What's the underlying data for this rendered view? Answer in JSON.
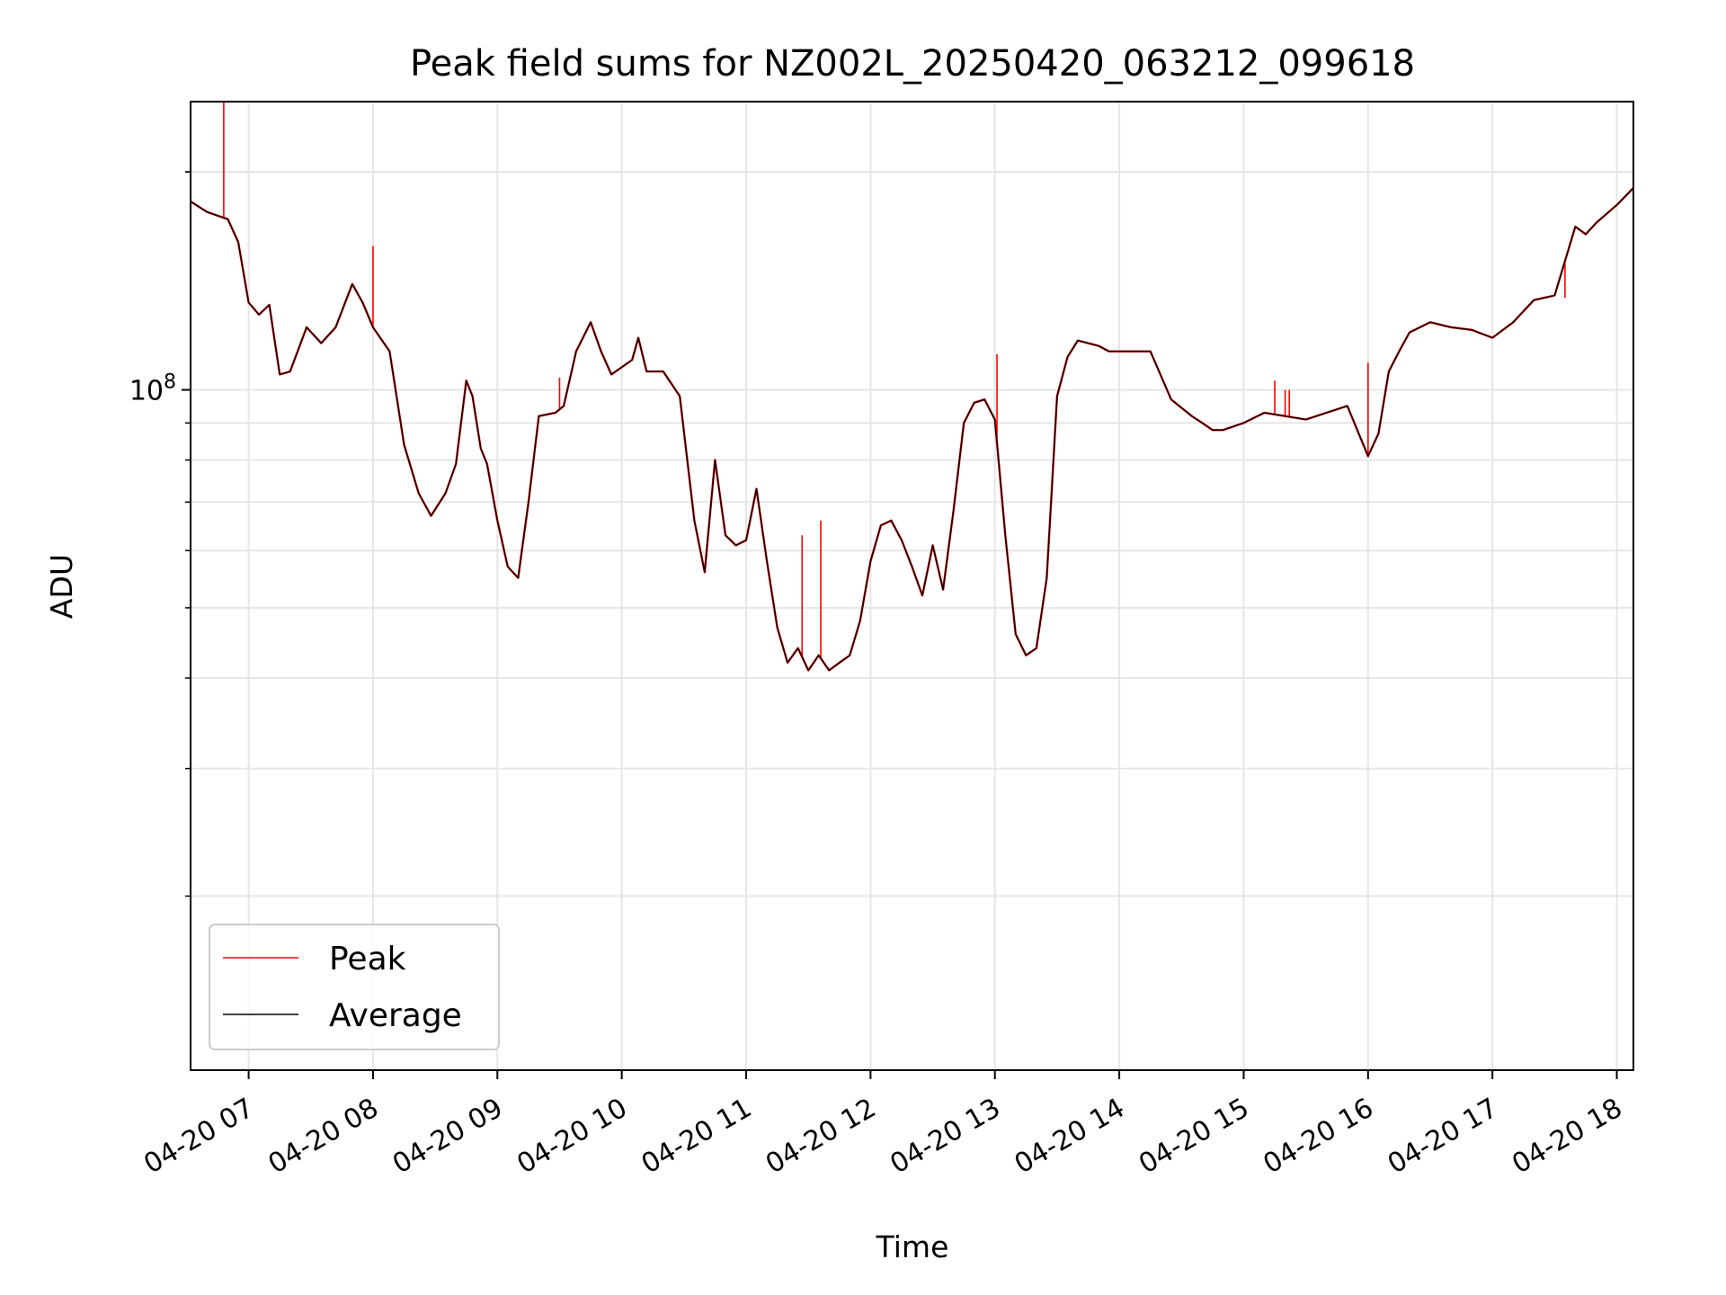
{
  "chart_data": {
    "type": "line",
    "title": "Peak field sums for NZ002L_20250420_063212_099618",
    "xlabel": "Time",
    "ylabel": "ADU",
    "y_scale": "log",
    "ylim": [
      11500000,
      250000000
    ],
    "xlim": [
      "2025-04-20 06:32",
      "2025-04-20 18:08"
    ],
    "x_ticks": [
      "04-20 07",
      "04-20 08",
      "04-20 09",
      "04-20 10",
      "04-20 11",
      "04-20 12",
      "04-20 13",
      "04-20 14",
      "04-20 15",
      "04-20 16",
      "04-20 17",
      "04-20 18"
    ],
    "y_tick_label": "10^8",
    "grid": true,
    "legend_position": "lower-left",
    "colors": {
      "peak": "#ff0000",
      "average": "#000000"
    },
    "series": [
      {
        "name": "Average",
        "x": [
          "2025-04-20 06:32",
          "2025-04-20 06:40",
          "2025-04-20 06:50",
          "2025-04-20 06:55",
          "2025-04-20 07:00",
          "2025-04-20 07:05",
          "2025-04-20 07:10",
          "2025-04-20 07:15",
          "2025-04-20 07:20",
          "2025-04-20 07:28",
          "2025-04-20 07:35",
          "2025-04-20 07:42",
          "2025-04-20 07:50",
          "2025-04-20 07:55",
          "2025-04-20 08:00",
          "2025-04-20 08:08",
          "2025-04-20 08:15",
          "2025-04-20 08:22",
          "2025-04-20 08:28",
          "2025-04-20 08:35",
          "2025-04-20 08:40",
          "2025-04-20 08:45",
          "2025-04-20 08:48",
          "2025-04-20 08:52",
          "2025-04-20 08:55",
          "2025-04-20 09:00",
          "2025-04-20 09:05",
          "2025-04-20 09:10",
          "2025-04-20 09:15",
          "2025-04-20 09:20",
          "2025-04-20 09:28",
          "2025-04-20 09:32",
          "2025-04-20 09:38",
          "2025-04-20 09:45",
          "2025-04-20 09:50",
          "2025-04-20 09:55",
          "2025-04-20 10:05",
          "2025-04-20 10:08",
          "2025-04-20 10:12",
          "2025-04-20 10:20",
          "2025-04-20 10:28",
          "2025-04-20 10:35",
          "2025-04-20 10:40",
          "2025-04-20 10:45",
          "2025-04-20 10:50",
          "2025-04-20 10:55",
          "2025-04-20 11:00",
          "2025-04-20 11:05",
          "2025-04-20 11:10",
          "2025-04-20 11:15",
          "2025-04-20 11:20",
          "2025-04-20 11:25",
          "2025-04-20 11:30",
          "2025-04-20 11:35",
          "2025-04-20 11:40",
          "2025-04-20 11:45",
          "2025-04-20 11:50",
          "2025-04-20 11:55",
          "2025-04-20 12:00",
          "2025-04-20 12:05",
          "2025-04-20 12:10",
          "2025-04-20 12:15",
          "2025-04-20 12:20",
          "2025-04-20 12:25",
          "2025-04-20 12:30",
          "2025-04-20 12:35",
          "2025-04-20 12:40",
          "2025-04-20 12:45",
          "2025-04-20 12:50",
          "2025-04-20 12:55",
          "2025-04-20 13:00",
          "2025-04-20 13:05",
          "2025-04-20 13:10",
          "2025-04-20 13:15",
          "2025-04-20 13:20",
          "2025-04-20 13:25",
          "2025-04-20 13:30",
          "2025-04-20 13:35",
          "2025-04-20 13:40",
          "2025-04-20 13:45",
          "2025-04-20 13:50",
          "2025-04-20 13:55",
          "2025-04-20 14:05",
          "2025-04-20 14:15",
          "2025-04-20 14:25",
          "2025-04-20 14:35",
          "2025-04-20 14:40",
          "2025-04-20 14:45",
          "2025-04-20 14:50",
          "2025-04-20 15:00",
          "2025-04-20 15:10",
          "2025-04-20 15:20",
          "2025-04-20 15:30",
          "2025-04-20 15:40",
          "2025-04-20 15:50",
          "2025-04-20 16:00",
          "2025-04-20 16:05",
          "2025-04-20 16:10",
          "2025-04-20 16:15",
          "2025-04-20 16:20",
          "2025-04-20 16:30",
          "2025-04-20 16:40",
          "2025-04-20 16:50",
          "2025-04-20 17:00",
          "2025-04-20 17:10",
          "2025-04-20 17:20",
          "2025-04-20 17:30",
          "2025-04-20 17:40",
          "2025-04-20 17:45",
          "2025-04-20 17:50",
          "2025-04-20 18:00",
          "2025-04-20 18:08"
        ],
        "y": [
          182000000,
          176000000,
          172000000,
          160000000,
          132000000,
          127000000,
          131000000,
          105000000,
          106000000,
          122000000,
          116000000,
          122000000,
          140000000,
          132000000,
          122000000,
          113000000,
          84000000,
          72000000,
          67000000,
          72000000,
          79000000,
          103000000,
          98000000,
          83000000,
          79000000,
          66000000,
          57000000,
          55000000,
          70000000,
          92000000,
          93000000,
          95000000,
          113000000,
          124000000,
          113000000,
          105000000,
          110000000,
          118000000,
          106000000,
          106000000,
          98000000,
          66000000,
          56000000,
          80000000,
          63000000,
          61000000,
          62000000,
          73000000,
          58000000,
          47000000,
          42000000,
          44000000,
          41000000,
          43000000,
          41000000,
          42000000,
          43000000,
          48000000,
          58000000,
          65000000,
          66000000,
          62000000,
          57000000,
          52000000,
          61000000,
          53000000,
          68000000,
          90000000,
          96000000,
          97000000,
          91000000,
          63000000,
          46000000,
          43000000,
          44000000,
          55000000,
          98000000,
          111000000,
          117000000,
          116000000,
          115000000,
          113000000,
          113000000,
          113000000,
          97000000,
          92000000,
          90000000,
          88000000,
          88000000,
          90000000,
          93000000,
          92000000,
          91000000,
          93000000,
          95000000,
          81000000,
          87000000,
          106000000,
          113000000,
          120000000,
          124000000,
          122000000,
          121000000,
          118000000,
          124000000,
          133000000,
          135000000,
          168000000,
          164000000,
          170000000,
          180000000,
          190000000
        ]
      },
      {
        "name": "Peak",
        "spikes": [
          {
            "x": "2025-04-20 06:48",
            "y": 250000000
          },
          {
            "x": "2025-04-20 08:00",
            "y": 158000000
          },
          {
            "x": "2025-04-20 09:30",
            "y": 104000000
          },
          {
            "x": "2025-04-20 11:27",
            "y": 63000000
          },
          {
            "x": "2025-04-20 11:36",
            "y": 66000000
          },
          {
            "x": "2025-04-20 13:01",
            "y": 112000000
          },
          {
            "x": "2025-04-20 15:15",
            "y": 103000000
          },
          {
            "x": "2025-04-20 15:20",
            "y": 100000000
          },
          {
            "x": "2025-04-20 15:22",
            "y": 100000000
          },
          {
            "x": "2025-04-20 16:00",
            "y": 109000000
          },
          {
            "x": "2025-04-20 17:35",
            "y": 134000000
          }
        ]
      }
    ]
  }
}
